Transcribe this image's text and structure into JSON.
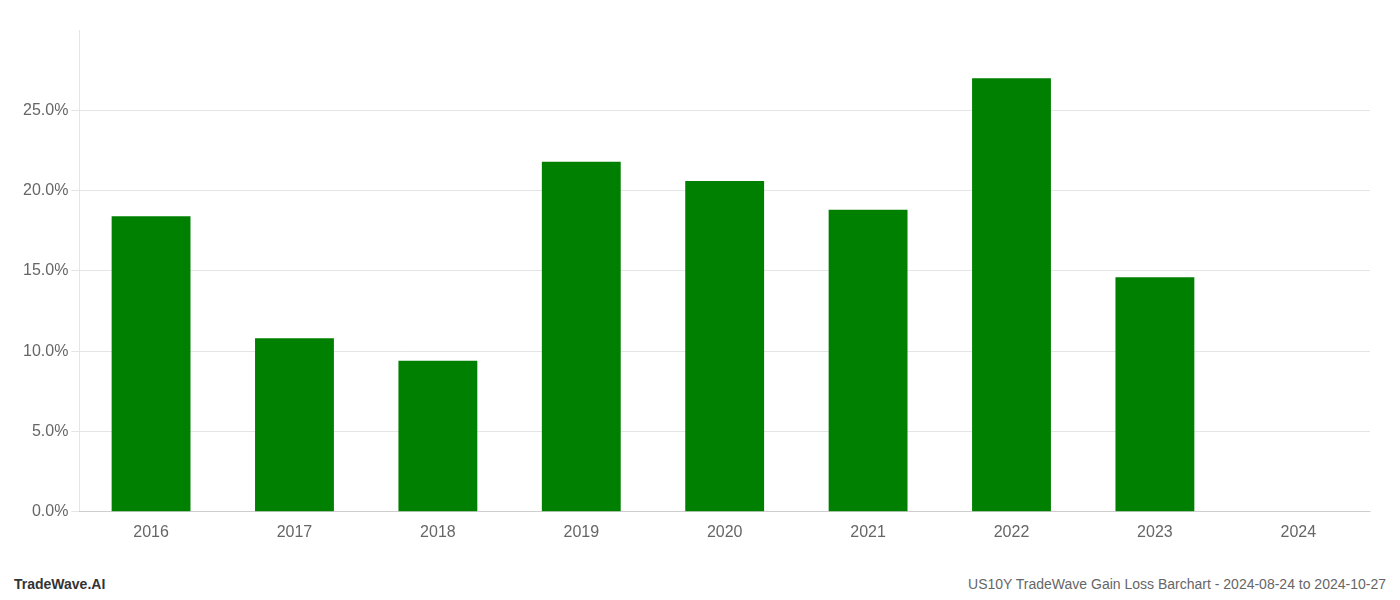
{
  "chart_data": {
    "type": "bar",
    "categories": [
      "2016",
      "2017",
      "2018",
      "2019",
      "2020",
      "2021",
      "2022",
      "2023",
      "2024"
    ],
    "values": [
      0.184,
      0.108,
      0.094,
      0.218,
      0.206,
      0.188,
      0.27,
      0.146,
      0.0
    ],
    "color": "#008000",
    "ylim": [
      0,
      0.3
    ],
    "yticks": [
      {
        "value": 0.0,
        "label": "0.0%"
      },
      {
        "value": 0.05,
        "label": "5.0%"
      },
      {
        "value": 0.1,
        "label": "10.0%"
      },
      {
        "value": 0.15,
        "label": "15.0%"
      },
      {
        "value": 0.2,
        "label": "20.0%"
      },
      {
        "value": 0.25,
        "label": "25.0%"
      }
    ],
    "grid": true,
    "annotations": [
      "TradeWave.AI",
      "US10Y TradeWave Gain Loss Barchart - 2024-08-24 to 2024-10-27"
    ]
  }
}
